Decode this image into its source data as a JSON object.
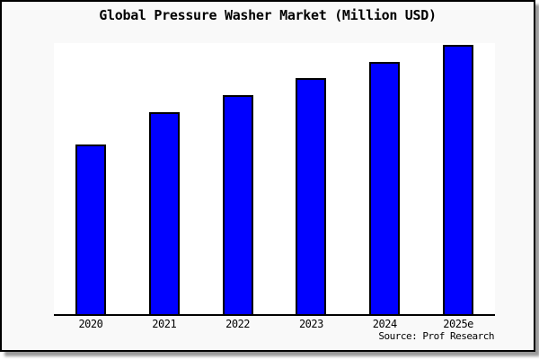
{
  "window": {
    "canvas_bg": "#ffffff",
    "frame_bg": "#f9f9f9",
    "frame_border_color": "#000000",
    "shadow_color": "#999999"
  },
  "chart_data": {
    "type": "bar",
    "title": "Global Pressure Washer Market (Million USD)",
    "categories": [
      "2020",
      "2021",
      "2022",
      "2023",
      "2024",
      "2025e"
    ],
    "values": [
      63,
      75,
      81.5,
      87.5,
      93.5,
      100
    ],
    "value_unit": "relative bar height, % of tallest bar (y-axis has no tick labels in image)",
    "xlabel": "",
    "ylabel": "",
    "ylim": [
      0,
      100
    ],
    "grid": false,
    "legend": null,
    "bar_color": "#0000ff",
    "bar_border_color": "#000000",
    "plot_bg": "#ffffff",
    "axis_color": "#000000"
  },
  "footer": {
    "source_label": "Source: Prof Research"
  }
}
